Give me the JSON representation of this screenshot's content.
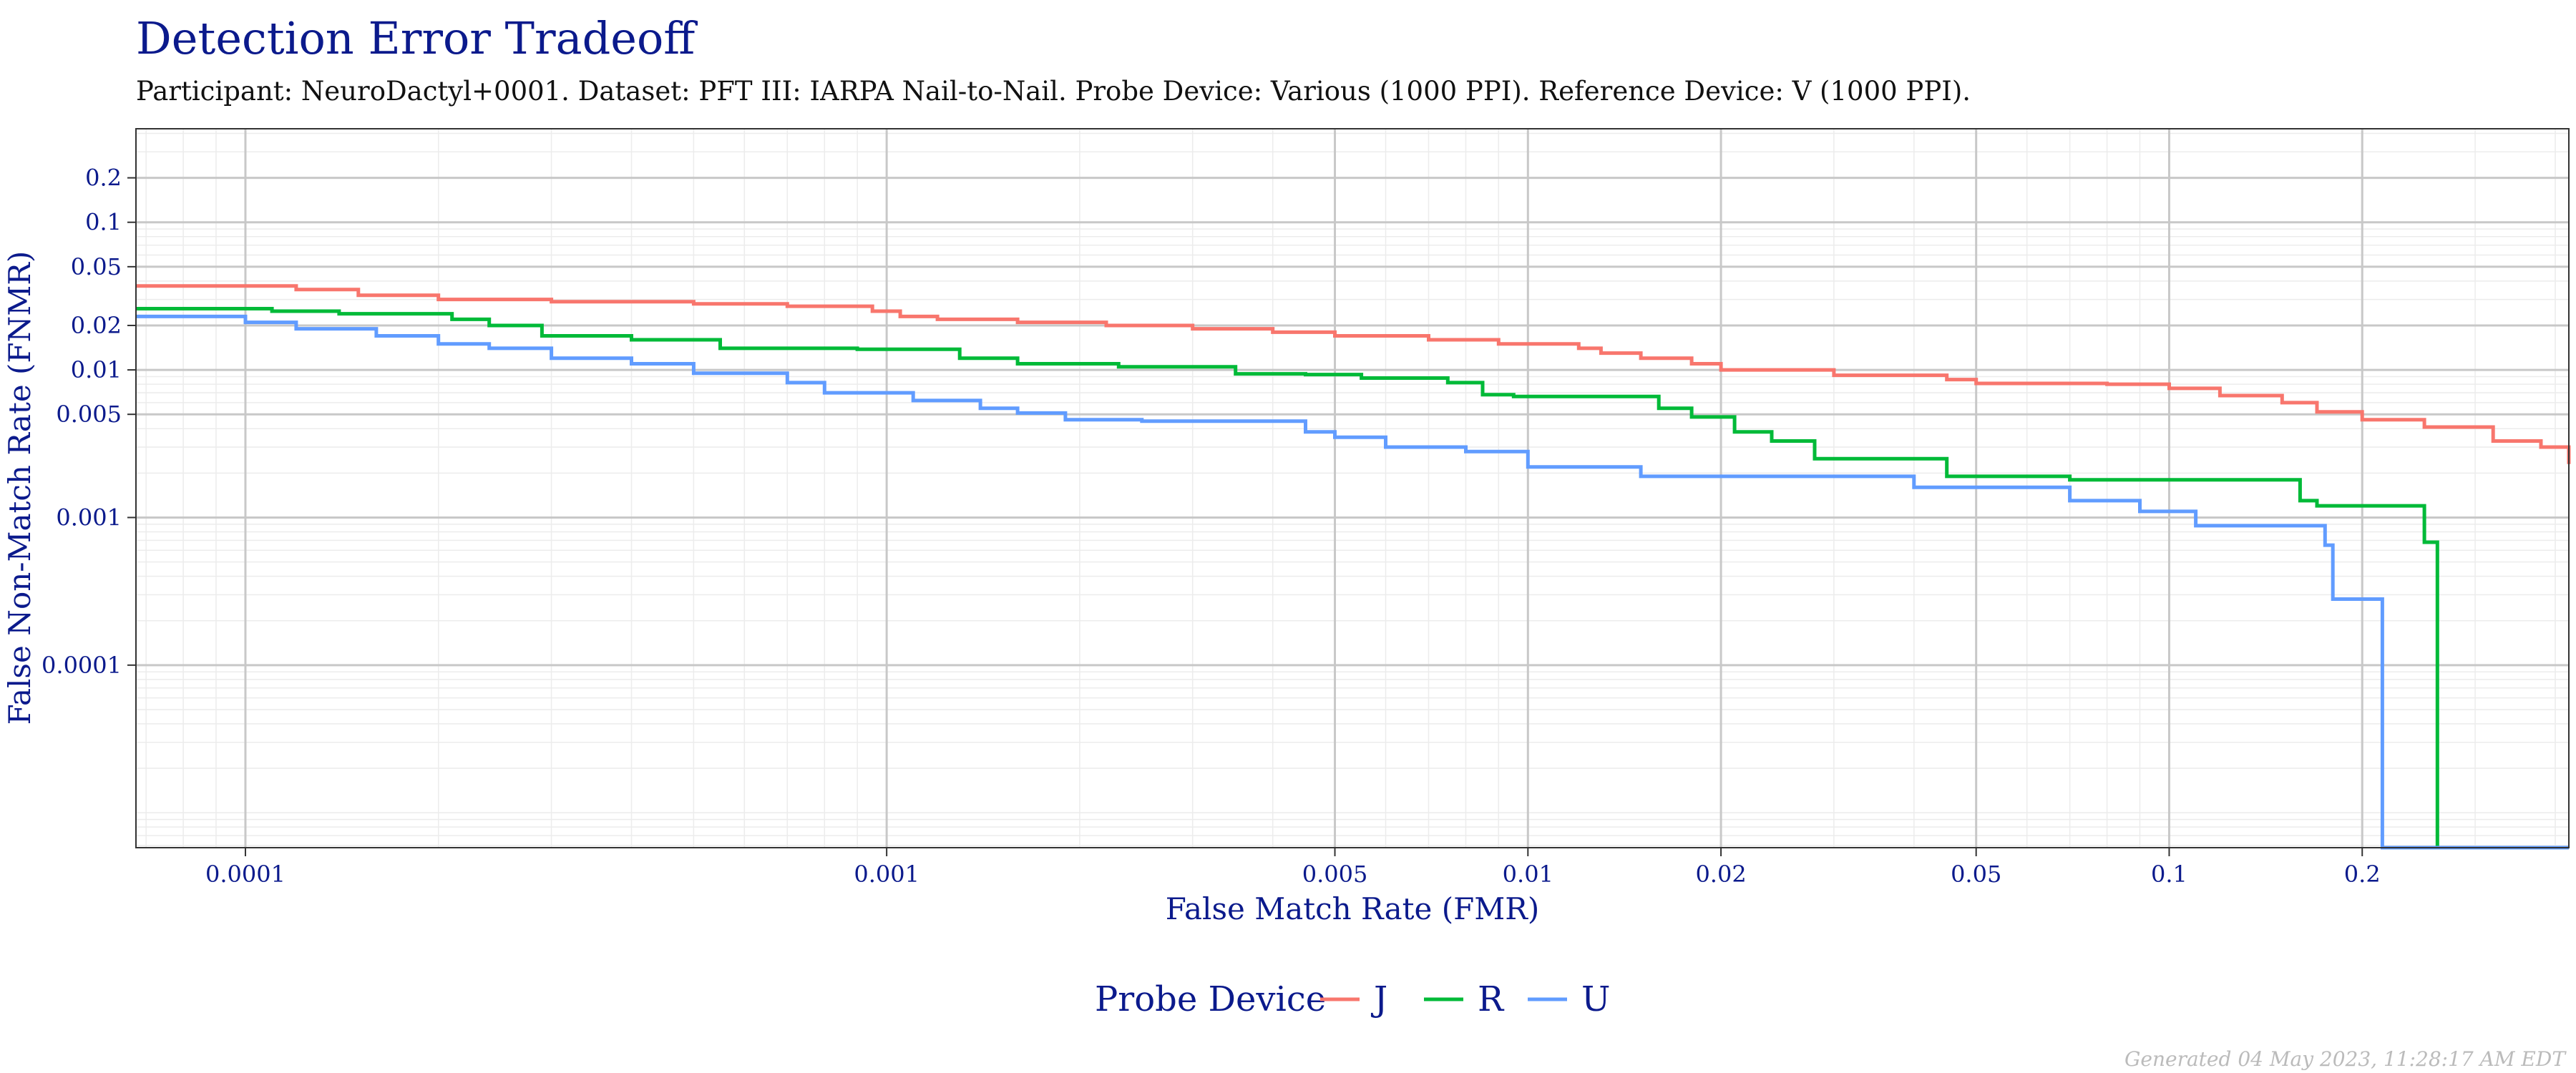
{
  "chart_data": {
    "type": "line",
    "title": "Detection Error Tradeoff",
    "subtitle": "Participant: NeuroDactyl+0001. Dataset: PFT III: IARPA Nail-to-Nail. Probe Device: Various (1000 PPI). Reference Device: V (1000 PPI).",
    "xlabel": "False Match Rate (FMR)",
    "ylabel": "False Non-Match Rate (FNMR)",
    "xscale": "log",
    "yscale": "log",
    "xlim": [
      6.75e-05,
      0.42
    ],
    "ylim": [
      5.8e-06,
      0.43
    ],
    "x_ticks": [
      0.0001,
      0.001,
      0.005,
      0.01,
      0.02,
      0.05,
      0.1,
      0.2
    ],
    "x_tick_labels": [
      "0.0001",
      "0.001",
      "0.005",
      "0.01",
      "0.02",
      "0.05",
      "0.1",
      "0.2"
    ],
    "y_ticks": [
      0.0001,
      0.001,
      0.005,
      0.01,
      0.02,
      0.05,
      0.1,
      0.2
    ],
    "y_tick_labels": [
      "0.0001",
      "0.001",
      "0.005",
      "0.01",
      "0.02",
      "0.05",
      "0.1",
      "0.2"
    ],
    "grid": true,
    "legend_title": "Probe Device",
    "legend_position": "bottom",
    "footer": "Generated 04 May 2023, 11:28:17 AM EDT",
    "series": [
      {
        "name": "J",
        "color": "#F8766D",
        "x": [
          6.75e-05,
          0.00012,
          0.00015,
          0.0002,
          0.0003,
          0.0005,
          0.0007,
          0.00095,
          0.00105,
          0.0012,
          0.0016,
          0.0022,
          0.003,
          0.004,
          0.005,
          0.007,
          0.009,
          0.012,
          0.013,
          0.015,
          0.018,
          0.02,
          0.03,
          0.045,
          0.05,
          0.08,
          0.1,
          0.12,
          0.15,
          0.17,
          0.2,
          0.25,
          0.32,
          0.38,
          0.42
        ],
        "y": [
          0.037,
          0.035,
          0.032,
          0.03,
          0.029,
          0.028,
          0.027,
          0.025,
          0.023,
          0.022,
          0.021,
          0.02,
          0.019,
          0.018,
          0.017,
          0.016,
          0.015,
          0.014,
          0.013,
          0.012,
          0.011,
          0.01,
          0.0092,
          0.0086,
          0.0081,
          0.008,
          0.0075,
          0.0067,
          0.006,
          0.0052,
          0.0046,
          0.0041,
          0.0033,
          0.003,
          0.0023
        ]
      },
      {
        "name": "R",
        "color": "#00BA38",
        "x": [
          6.75e-05,
          0.00011,
          0.00014,
          0.00021,
          0.00024,
          0.00029,
          0.0004,
          0.00055,
          0.0009,
          0.0013,
          0.0016,
          0.0023,
          0.0035,
          0.0045,
          0.0055,
          0.0075,
          0.0085,
          0.0095,
          0.016,
          0.018,
          0.021,
          0.024,
          0.028,
          0.045,
          0.07,
          0.16,
          0.17,
          0.25,
          0.262
        ],
        "y": [
          0.026,
          0.025,
          0.024,
          0.022,
          0.02,
          0.017,
          0.016,
          0.014,
          0.0138,
          0.012,
          0.011,
          0.0105,
          0.0094,
          0.0093,
          0.0088,
          0.0082,
          0.0068,
          0.0066,
          0.0055,
          0.0048,
          0.0038,
          0.0033,
          0.0025,
          0.0019,
          0.0018,
          0.0013,
          0.0012,
          0.00068,
          3e-06
        ]
      },
      {
        "name": "U",
        "color": "#619CFF",
        "x": [
          6.75e-05,
          0.0001,
          0.00012,
          0.00016,
          0.0002,
          0.00024,
          0.0003,
          0.0004,
          0.0005,
          0.0007,
          0.0008,
          0.0011,
          0.0014,
          0.0016,
          0.0019,
          0.0025,
          0.0045,
          0.005,
          0.006,
          0.008,
          0.01,
          0.015,
          0.04,
          0.07,
          0.09,
          0.11,
          0.175,
          0.18,
          0.215
        ],
        "y": [
          0.023,
          0.021,
          0.019,
          0.017,
          0.015,
          0.014,
          0.012,
          0.011,
          0.0095,
          0.0082,
          0.007,
          0.0062,
          0.0055,
          0.0051,
          0.0046,
          0.0045,
          0.0038,
          0.0035,
          0.003,
          0.0028,
          0.0022,
          0.0019,
          0.0016,
          0.0013,
          0.0011,
          0.00088,
          0.00065,
          0.00028,
          3e-06
        ]
      }
    ]
  }
}
